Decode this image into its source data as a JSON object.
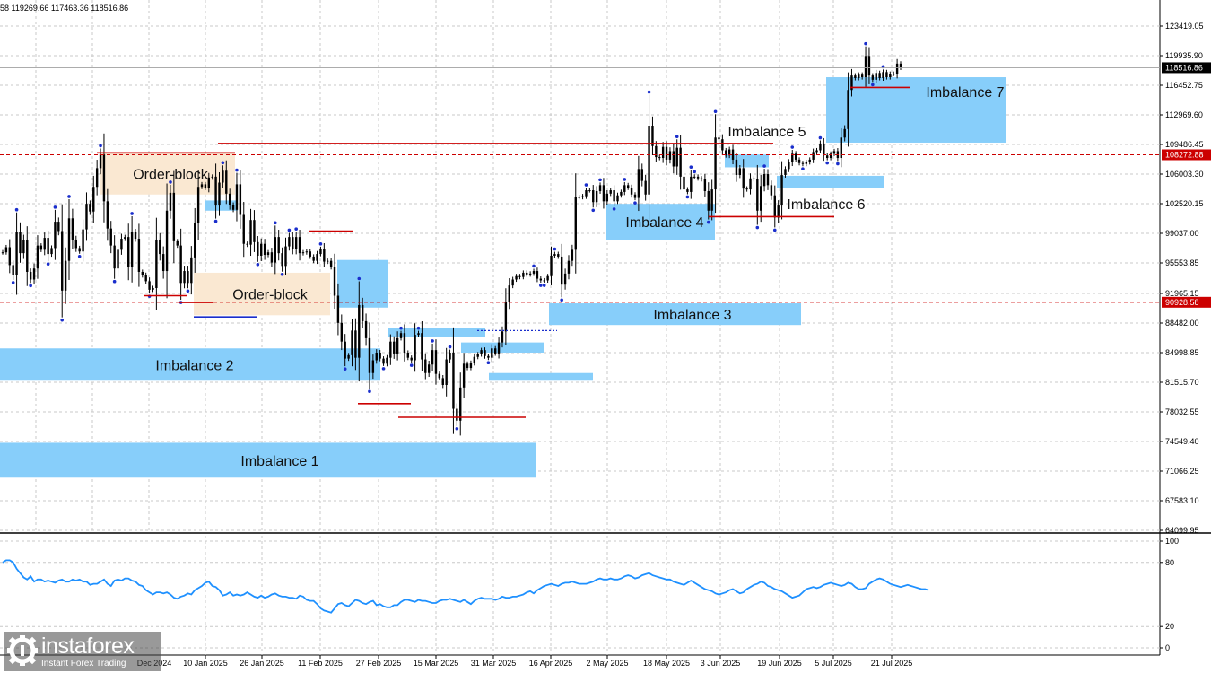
{
  "header": {
    "ohlc_text": "58 119269.66 117463.36 118516.86"
  },
  "brand": {
    "name": "instaforex",
    "tagline": "Instant Forex Trading"
  },
  "colors": {
    "candle": "#000000",
    "fractal": "#1a2ecc",
    "imbalance": "#87cefa",
    "order_block": "#fae8d2",
    "level_line": "#cc0000",
    "blue_line": "#1a2ecc",
    "rsi_line": "#1e90ff",
    "grid": "#c8c8c8",
    "current_price_tag": "#000000",
    "red_tag": "#cc0000"
  },
  "chart_data": [
    {
      "type": "candlestick",
      "title": "",
      "y_axis_ticks": [
        "123419.05",
        "119935.90",
        "116452.75",
        "112969.60",
        "109486.45",
        "106003.30",
        "102520.15",
        "99037.00",
        "95553.85",
        "91965.15",
        "88482.00",
        "84998.85",
        "81515.70",
        "78032.55",
        "74549.40",
        "71066.25",
        "67583.10",
        "64099.95"
      ],
      "ylim": [
        64099.95,
        123419.05
      ],
      "x_axis_ticks": [
        "10 Jan 2025",
        "26 Jan 2025",
        "11 Feb 2025",
        "27 Feb 2025",
        "15 Mar 2025",
        "31 Mar 2025",
        "16 Apr 2025",
        "2 May 2025",
        "18 May 2025",
        "3 Jun 2025",
        "19 Jun 2025",
        "5 Jul 2025",
        "21 Jul 2025"
      ],
      "x_axis_partial_label": "Dec 2024",
      "grid": true,
      "price_tags": [
        {
          "value": 118516.86,
          "label": "118516.86",
          "style": "current"
        },
        {
          "value": 108272.88,
          "label": "108272.88",
          "style": "level"
        },
        {
          "value": 90928.58,
          "label": "90928.58",
          "style": "level"
        }
      ],
      "series_close": [
        96800,
        97400,
        95300,
        94100,
        99200,
        96700,
        98200,
        94500,
        93600,
        94900,
        97600,
        97100,
        98500,
        96600,
        97300,
        100400,
        99300,
        92300,
        95800,
        100800,
        98300,
        97300,
        96900,
        99500,
        102500,
        101600,
        104500,
        106700,
        108300,
        102800,
        99600,
        97600,
        94900,
        97100,
        98400,
        98600,
        95100,
        99200,
        98400,
        94500,
        94100,
        93400,
        92400,
        92600,
        98300,
        96600,
        94600,
        101700,
        103800,
        98100,
        97600,
        93200,
        94600,
        93200,
        96200,
        100200,
        104500,
        104800,
        104400,
        105600,
        105700,
        102300,
        105000,
        106400,
        103700,
        102400,
        101800,
        104800,
        101200,
        97800,
        97700,
        100600,
        98000,
        96400,
        97800,
        96500,
        96800,
        95600,
        98600,
        96700,
        95200,
        97500,
        98600,
        97200,
        98600,
        96700,
        96800,
        96900,
        96300,
        95800,
        96600,
        97200,
        95700,
        95800,
        95100,
        91700,
        88500,
        86300,
        84300,
        84700,
        87600,
        84400,
        90600,
        88700,
        86700,
        82600,
        84100,
        85000,
        84300,
        83700,
        84400,
        86300,
        84900,
        86700,
        87300,
        85000,
        84400,
        84100,
        87100,
        87300,
        84200,
        82600,
        83600,
        85300,
        82500,
        82000,
        81200,
        84200,
        85000,
        78400,
        77000,
        80900,
        83700,
        83200,
        83800,
        84500,
        84800,
        85300,
        84600,
        84400,
        85500,
        84900,
        86200,
        87500,
        91000,
        92900,
        93600,
        94000,
        93900,
        94400,
        94200,
        94300,
        94600,
        93700,
        93500,
        93500,
        94000,
        96400,
        96600,
        96300,
        93000,
        94300,
        95800,
        97100,
        103300,
        103300,
        103400,
        104100,
        104100,
        102700,
        104000,
        104700,
        102800,
        103700,
        104100,
        102800,
        103500,
        103900,
        104700,
        104400,
        103600,
        103200,
        106600,
        105200,
        103600,
        111700,
        109300,
        108000,
        107900,
        109200,
        107700,
        108700,
        106900,
        109100,
        105700,
        104200,
        103900,
        105700,
        105700,
        105500,
        105400,
        104000,
        101700,
        104200,
        110300,
        110100,
        108800,
        108200,
        108900,
        107700,
        105900,
        106700,
        104300,
        104200,
        105500,
        105400,
        101700,
        104600,
        106000,
        104700,
        103500,
        100900,
        102300,
        105900,
        106600,
        107400,
        108400,
        107700,
        107300,
        107200,
        107400,
        107700,
        108600,
        108800,
        109600,
        108200,
        107900,
        108400,
        108700,
        107900,
        110300,
        111300,
        115900,
        117600,
        117300,
        117700,
        117400,
        119900,
        117600,
        117100,
        117900,
        117300,
        118000,
        117400,
        117800,
        117800,
        119000,
        118516.86
      ]
    },
    {
      "type": "line",
      "title": "",
      "yticks": [
        100,
        80,
        20,
        0
      ],
      "ylim": [
        0,
        100
      ],
      "x_axis_ticks": [
        "10 Jan 2025",
        "26 Jan 2025",
        "11 Feb 2025",
        "27 Feb 2025",
        "15 Mar 2025",
        "31 Mar 2025",
        "16 Apr 2025",
        "2 May 2025",
        "18 May 2025",
        "3 Jun 2025",
        "19 Jun 2025",
        "5 Jul 2025",
        "21 Jul 2025"
      ],
      "series": [
        {
          "values": [
            80,
            82,
            82,
            80,
            74,
            70,
            66,
            64,
            67,
            62,
            64,
            64,
            62,
            63,
            62,
            61,
            63,
            64,
            62,
            62,
            64,
            63,
            64,
            62,
            62,
            59,
            60,
            60,
            62,
            64,
            60,
            58,
            63,
            64,
            63,
            65,
            65,
            63,
            62,
            59,
            58,
            54,
            52,
            50,
            52,
            52,
            51,
            52,
            50,
            47,
            46,
            48,
            49,
            51,
            50,
            54,
            56,
            58,
            61,
            62,
            58,
            57,
            54,
            49,
            50,
            52,
            49,
            50,
            49,
            50,
            52,
            50,
            48,
            47,
            49,
            47,
            48,
            50,
            51,
            49,
            48,
            48,
            47,
            47,
            46,
            49,
            48,
            45,
            44,
            44,
            41,
            37,
            35,
            34,
            33,
            37,
            41,
            42,
            40,
            39,
            42,
            45,
            44,
            42,
            41,
            43,
            44,
            40,
            41,
            39,
            38,
            38,
            40,
            40,
            43,
            45,
            45,
            44,
            43,
            45,
            44,
            44,
            43,
            42,
            42,
            44,
            45,
            45,
            46,
            45,
            44,
            43,
            45,
            43,
            41,
            44,
            46,
            47,
            46,
            46,
            46,
            45,
            46,
            48,
            47,
            47,
            48,
            48,
            49,
            50,
            52,
            53,
            51,
            54,
            56,
            58,
            59,
            60,
            59,
            58,
            60,
            61,
            61,
            62,
            61,
            60,
            60,
            60,
            61,
            62,
            64,
            65,
            64,
            64,
            65,
            64,
            64,
            65,
            67,
            68,
            67,
            65,
            66,
            68,
            69,
            70,
            68,
            67,
            66,
            65,
            64,
            64,
            62,
            61,
            60,
            59,
            61,
            63,
            61,
            59,
            57,
            55,
            54,
            53,
            51,
            50,
            51,
            52,
            54,
            55,
            53,
            51,
            52,
            55,
            57,
            59,
            60,
            62,
            61,
            58,
            57,
            55,
            54,
            53,
            51,
            49,
            47,
            48,
            49,
            52,
            55,
            56,
            57,
            56,
            57,
            59,
            60,
            61,
            60,
            59,
            58,
            59,
            61,
            60,
            57,
            55,
            55,
            56,
            60,
            62,
            64,
            65,
            64,
            62,
            60,
            59,
            58,
            57,
            58,
            59,
            58,
            57,
            56,
            55,
            55,
            54
          ]
        }
      ]
    }
  ],
  "zones": {
    "imbalances": [
      {
        "label": "Imbalance 1",
        "y_low": 70300,
        "y_high": 74400
      },
      {
        "label": "Imbalance 2",
        "y_low": 81700,
        "y_high": 85500
      },
      {
        "label": "Imbalance 3",
        "y_low": 88250,
        "y_high": 90800
      },
      {
        "label": "Imbalance 4",
        "y_low": 98300,
        "y_high": 102500
      },
      {
        "label": "Imbalance 5",
        "y_low": 106800,
        "y_high": 108300
      },
      {
        "label": "Imbalance 6",
        "y_low": 104400,
        "y_high": 105800
      },
      {
        "label": "Imbalance 7",
        "y_low": 109700,
        "y_high": 117400
      }
    ],
    "order_blocks": [
      {
        "label": "Order-block",
        "y_low": 103600,
        "y_high": 108500
      },
      {
        "label": "Order-block",
        "y_low": 89400,
        "y_high": 94400
      }
    ],
    "levels": [
      {
        "kind": "red",
        "value": 109600
      },
      {
        "kind": "red",
        "value": 108500
      },
      {
        "kind": "red",
        "value": 101000
      },
      {
        "kind": "red",
        "value": 99300
      },
      {
        "kind": "red",
        "value": 91700
      },
      {
        "kind": "red",
        "value": 90900
      },
      {
        "kind": "red",
        "value": 79000
      },
      {
        "kind": "red",
        "value": 77400
      },
      {
        "kind": "red",
        "value": 116200
      },
      {
        "kind": "blue",
        "value": 89200
      },
      {
        "kind": "blue_dotted",
        "value": 87600
      }
    ]
  }
}
